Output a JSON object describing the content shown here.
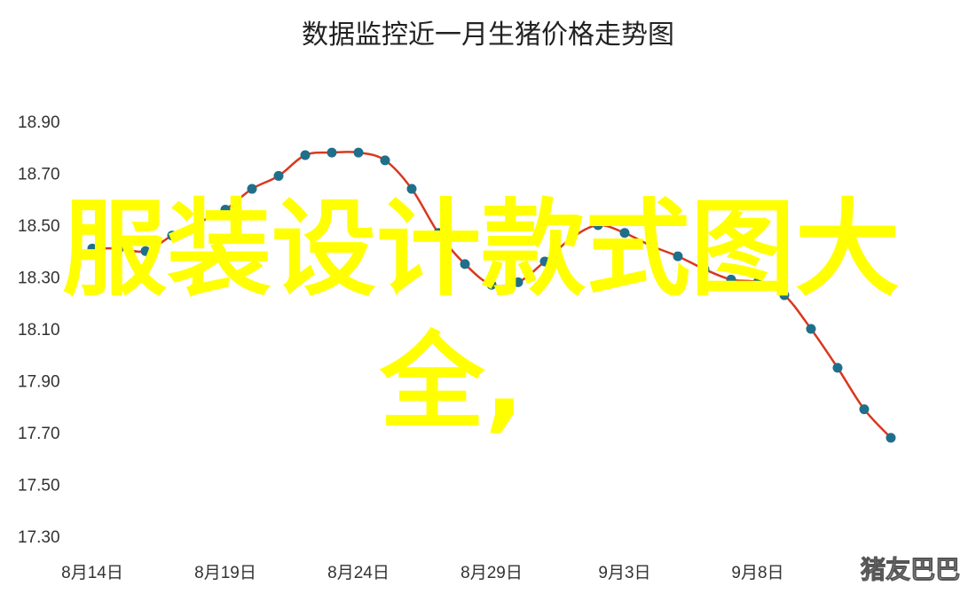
{
  "chart_data": {
    "type": "line",
    "title": "数据监控近一月生猪价格走势图",
    "xlabel": "",
    "ylabel": "",
    "x": [
      "8/14",
      "8/15",
      "8/16",
      "8/17",
      "8/18",
      "8/19",
      "8/20",
      "8/21",
      "8/22",
      "8/23",
      "8/24",
      "8/25",
      "8/26",
      "8/27",
      "8/28",
      "8/29",
      "8/30",
      "8/31",
      "9/1",
      "9/2",
      "9/3",
      "9/4",
      "9/5",
      "9/6",
      "9/7",
      "9/8",
      "9/9",
      "9/10",
      "9/11",
      "9/12",
      "9/13"
    ],
    "values": [
      18.41,
      18.41,
      18.4,
      18.46,
      18.51,
      18.56,
      18.64,
      18.69,
      18.77,
      18.78,
      18.78,
      18.75,
      18.64,
      18.47,
      18.35,
      18.27,
      18.28,
      18.36,
      18.45,
      18.5,
      18.47,
      18.42,
      18.38,
      18.33,
      18.29,
      18.28,
      18.23,
      18.1,
      17.95,
      17.79,
      17.68
    ],
    "xticks": [
      "8月14日",
      "8月19日",
      "8月24日",
      "8月29日",
      "9月3日",
      "9月8日"
    ],
    "yticks": [
      "18.90",
      "18.70",
      "18.50",
      "18.30",
      "18.10",
      "17.90",
      "17.70",
      "17.50",
      "17.30"
    ],
    "ylim": [
      17.3,
      18.9
    ],
    "grid": false,
    "line_color": "#d9381e",
    "marker_color": "#1f6f8b"
  },
  "overlay": {
    "line1": "服装设计款式图大",
    "line2": "全,",
    "color": "#ffff00"
  },
  "watermark": "猪友巴巴"
}
